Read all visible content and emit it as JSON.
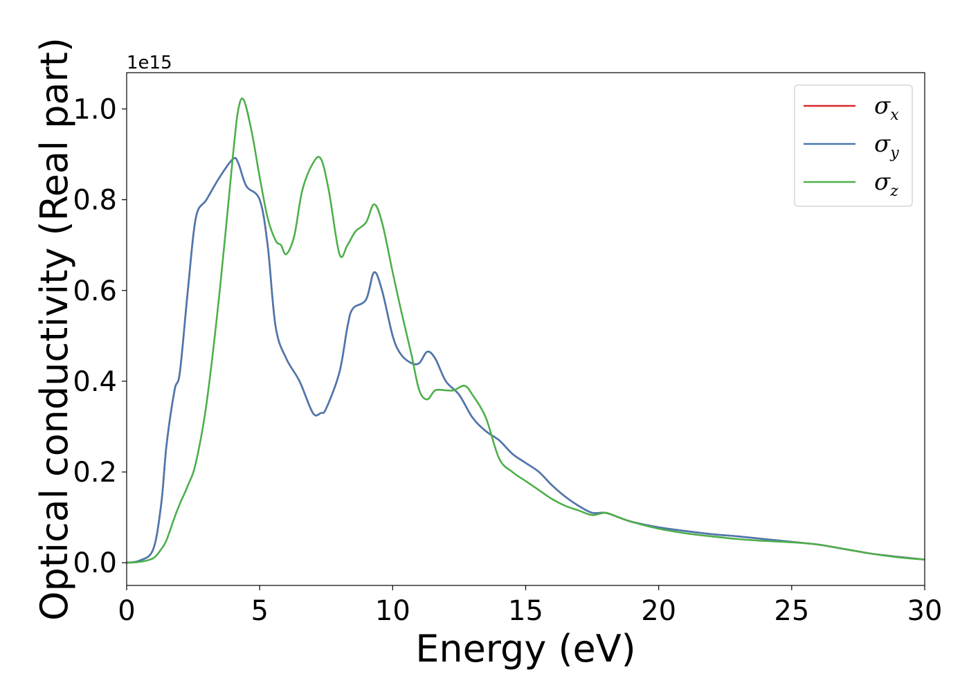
{
  "chart_data": {
    "type": "line",
    "xlabel": "Energy (eV)",
    "ylabel": "Optical conductivity (Real part)",
    "y_offset_text": "1e15",
    "xlim": [
      0,
      30
    ],
    "ylim": [
      -0.05,
      1.08
    ],
    "x_ticks": [
      0,
      5,
      10,
      15,
      20,
      25,
      30
    ],
    "x_tick_labels": [
      "0",
      "5",
      "10",
      "15",
      "20",
      "25",
      "30"
    ],
    "y_ticks": [
      0.0,
      0.2,
      0.4,
      0.6,
      0.8,
      1.0
    ],
    "y_tick_labels": [
      "0.0",
      "0.2",
      "0.4",
      "0.6",
      "0.8",
      "1.0"
    ],
    "grid": false,
    "legend_position": "top-right",
    "series": [
      {
        "name": "σx",
        "legend_main": "σ",
        "legend_sub": "x",
        "color": "#d62728",
        "x": [
          0,
          0.5,
          1.0,
          1.3,
          1.5,
          1.8,
          2.0,
          2.3,
          2.6,
          3.0,
          3.5,
          4.0,
          4.2,
          4.5,
          5.0,
          5.3,
          5.6,
          6.0,
          6.5,
          7.0,
          7.3,
          7.5,
          8.0,
          8.3,
          8.5,
          9.0,
          9.3,
          9.6,
          10.0,
          10.3,
          10.7,
          11.0,
          11.3,
          11.6,
          12.0,
          12.5,
          13.0,
          13.5,
          14.0,
          14.5,
          15.0,
          15.5,
          16.0,
          16.5,
          17.0,
          17.5,
          18.0,
          18.5,
          19.0,
          20.0,
          21.0,
          22.0,
          23.0,
          24.0,
          25.0,
          26.0,
          27.0,
          28.0,
          29.0,
          30.0
        ],
        "y": [
          0.0,
          0.005,
          0.03,
          0.13,
          0.26,
          0.38,
          0.42,
          0.6,
          0.76,
          0.8,
          0.85,
          0.89,
          0.88,
          0.83,
          0.8,
          0.7,
          0.52,
          0.45,
          0.4,
          0.33,
          0.33,
          0.34,
          0.42,
          0.52,
          0.56,
          0.58,
          0.64,
          0.6,
          0.5,
          0.46,
          0.44,
          0.44,
          0.465,
          0.45,
          0.4,
          0.37,
          0.32,
          0.29,
          0.27,
          0.24,
          0.22,
          0.2,
          0.17,
          0.145,
          0.125,
          0.11,
          0.11,
          0.1,
          0.09,
          0.078,
          0.07,
          0.063,
          0.058,
          0.052,
          0.046,
          0.04,
          0.03,
          0.02,
          0.013,
          0.007
        ]
      },
      {
        "name": "σy",
        "legend_main": "σ",
        "legend_sub": "y",
        "color": "#4a79b0",
        "x": [
          0,
          0.5,
          1.0,
          1.3,
          1.5,
          1.8,
          2.0,
          2.3,
          2.6,
          3.0,
          3.5,
          4.0,
          4.2,
          4.5,
          5.0,
          5.3,
          5.6,
          6.0,
          6.5,
          7.0,
          7.3,
          7.5,
          8.0,
          8.3,
          8.5,
          9.0,
          9.3,
          9.6,
          10.0,
          10.3,
          10.7,
          11.0,
          11.3,
          11.6,
          12.0,
          12.5,
          13.0,
          13.5,
          14.0,
          14.5,
          15.0,
          15.5,
          16.0,
          16.5,
          17.0,
          17.5,
          18.0,
          18.5,
          19.0,
          20.0,
          21.0,
          22.0,
          23.0,
          24.0,
          25.0,
          26.0,
          27.0,
          28.0,
          29.0,
          30.0
        ],
        "y": [
          0.0,
          0.005,
          0.03,
          0.13,
          0.26,
          0.38,
          0.42,
          0.6,
          0.76,
          0.8,
          0.85,
          0.89,
          0.88,
          0.83,
          0.8,
          0.7,
          0.52,
          0.45,
          0.4,
          0.33,
          0.33,
          0.34,
          0.42,
          0.52,
          0.56,
          0.58,
          0.64,
          0.6,
          0.5,
          0.46,
          0.44,
          0.44,
          0.465,
          0.45,
          0.4,
          0.37,
          0.32,
          0.29,
          0.27,
          0.24,
          0.22,
          0.2,
          0.17,
          0.145,
          0.125,
          0.11,
          0.11,
          0.1,
          0.09,
          0.078,
          0.07,
          0.063,
          0.058,
          0.052,
          0.046,
          0.04,
          0.03,
          0.02,
          0.013,
          0.007
        ]
      },
      {
        "name": "σz",
        "legend_main": "σ",
        "legend_sub": "z",
        "color": "#4daf4a",
        "x": [
          0,
          0.5,
          1.0,
          1.3,
          1.5,
          1.8,
          2.0,
          2.3,
          2.6,
          3.0,
          3.5,
          4.0,
          4.2,
          4.4,
          4.7,
          5.0,
          5.3,
          5.6,
          5.8,
          6.0,
          6.3,
          6.6,
          7.0,
          7.3,
          7.6,
          8.0,
          8.3,
          8.6,
          9.0,
          9.3,
          9.6,
          10.0,
          10.3,
          10.7,
          11.0,
          11.3,
          11.6,
          12.0,
          12.3,
          12.7,
          13.0,
          13.5,
          14.0,
          14.5,
          15.0,
          15.5,
          16.0,
          16.5,
          17.0,
          17.5,
          18.0,
          18.5,
          19.0,
          20.0,
          21.0,
          22.0,
          23.0,
          24.0,
          25.0,
          26.0,
          27.0,
          28.0,
          29.0,
          30.0
        ],
        "y": [
          0.0,
          0.002,
          0.01,
          0.03,
          0.05,
          0.1,
          0.13,
          0.17,
          0.22,
          0.35,
          0.6,
          0.9,
          1.0,
          1.02,
          0.95,
          0.85,
          0.76,
          0.71,
          0.7,
          0.68,
          0.72,
          0.82,
          0.88,
          0.89,
          0.82,
          0.68,
          0.7,
          0.73,
          0.75,
          0.79,
          0.75,
          0.64,
          0.56,
          0.46,
          0.38,
          0.36,
          0.38,
          0.38,
          0.38,
          0.39,
          0.37,
          0.32,
          0.23,
          0.2,
          0.18,
          0.16,
          0.14,
          0.125,
          0.115,
          0.105,
          0.11,
          0.1,
          0.09,
          0.075,
          0.065,
          0.058,
          0.052,
          0.048,
          0.045,
          0.04,
          0.03,
          0.02,
          0.012,
          0.007
        ]
      }
    ]
  }
}
